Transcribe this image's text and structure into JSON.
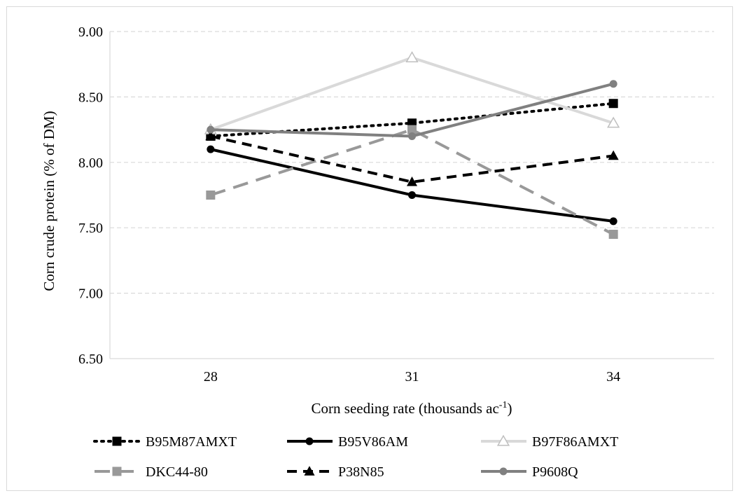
{
  "chart_data": {
    "type": "line",
    "title": "",
    "xlabel": "Corn seeding rate (thousands ac",
    "xlabel_sup": "-1",
    "xlabel_tail": ")",
    "ylabel": "Corn crude protein (% of DM)",
    "categories": [
      "28",
      "31",
      "34"
    ],
    "ylim": [
      6.5,
      9.0
    ],
    "yticks": [
      "6.50",
      "7.00",
      "7.50",
      "8.00",
      "8.50",
      "9.00"
    ],
    "ytick_values": [
      6.5,
      7.0,
      7.5,
      8.0,
      8.5,
      9.0
    ],
    "grid": true,
    "legend_position": "bottom",
    "series": [
      {
        "name": "B95M87AMXT",
        "values": [
          8.2,
          8.3,
          8.45
        ],
        "color": "#000000",
        "dash": "dotted",
        "marker": "square"
      },
      {
        "name": "B95V86AM",
        "values": [
          8.1,
          7.75,
          7.55
        ],
        "color": "#000000",
        "dash": "solid",
        "marker": "circle"
      },
      {
        "name": "B97F86AMXT",
        "values": [
          8.25,
          8.8,
          8.3
        ],
        "color": "#d9d9d9",
        "dash": "solid",
        "marker": "triangle-open"
      },
      {
        "name": "DKC44-80",
        "values": [
          7.75,
          8.25,
          7.45
        ],
        "color": "#999999",
        "dash": "longdash",
        "marker": "square"
      },
      {
        "name": "P38N85",
        "values": [
          8.2,
          7.85,
          8.05
        ],
        "color": "#000000",
        "dash": "dash",
        "marker": "triangle"
      },
      {
        "name": "P9608Q",
        "values": [
          8.25,
          8.2,
          8.6
        ],
        "color": "#808080",
        "dash": "solid",
        "marker": "circle"
      }
    ]
  }
}
